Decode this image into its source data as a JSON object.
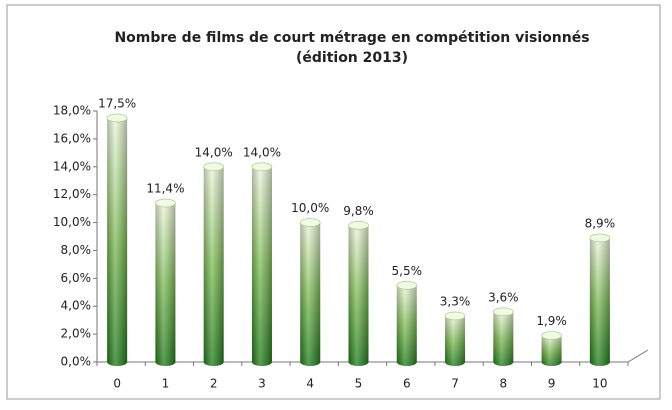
{
  "chart_data": {
    "type": "bar",
    "title": "Nombre de films de court métrage en compétition visionnés",
    "subtitle": "(édition 2013)",
    "categories": [
      "0",
      "1",
      "2",
      "3",
      "4",
      "5",
      "6",
      "7",
      "8",
      "9",
      "10"
    ],
    "values": [
      17.5,
      11.4,
      14.0,
      14.0,
      10.0,
      9.8,
      5.5,
      3.3,
      3.6,
      1.9,
      8.9
    ],
    "value_labels": [
      "17,5%",
      "11,4%",
      "14,0%",
      "14,0%",
      "10,0%",
      "9,8%",
      "5,5%",
      "3,3%",
      "3,6%",
      "1,9%",
      "8,9%"
    ],
    "color": "#2e8b22",
    "ylim": [
      0,
      18
    ],
    "yticks": [
      {
        "value": 0,
        "label": "0,0%"
      },
      {
        "value": 2,
        "label": "2,0%"
      },
      {
        "value": 4,
        "label": "4,0%"
      },
      {
        "value": 6,
        "label": "6,0%"
      },
      {
        "value": 8,
        "label": "8,0%"
      },
      {
        "value": 10,
        "label": "10,0%"
      },
      {
        "value": 12,
        "label": "12,0%"
      },
      {
        "value": 14,
        "label": "14,0%"
      },
      {
        "value": 16,
        "label": "16,0%"
      },
      {
        "value": 18,
        "label": "18,0%"
      }
    ],
    "grid": false
  }
}
